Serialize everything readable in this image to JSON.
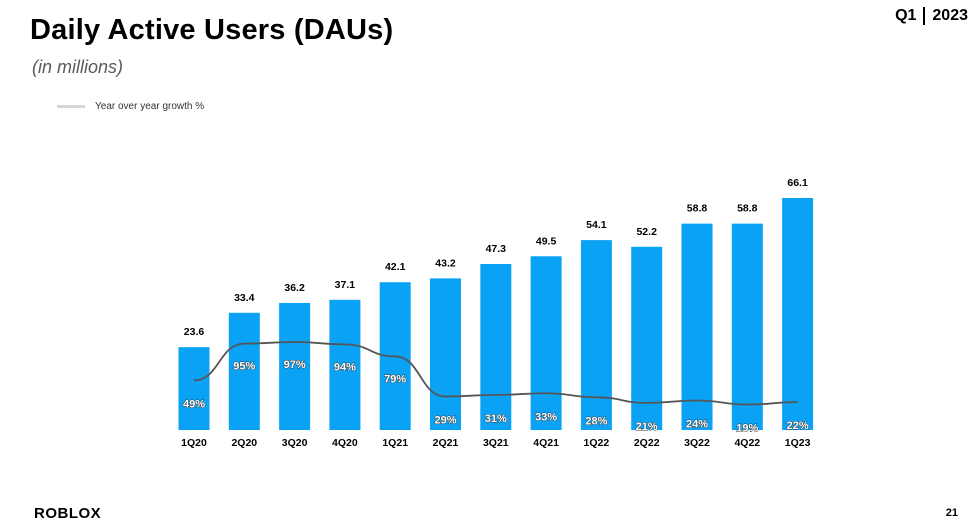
{
  "header": {
    "title": "Daily Active Users (DAUs)",
    "subtitle": "(in millions)",
    "quarter": "Q1",
    "year": "2023"
  },
  "legend": {
    "series_label": "Year over year growth %"
  },
  "footer": {
    "logo_text": "ROBLOX",
    "page_number": "21"
  },
  "colors": {
    "bar": "#0aa2f5",
    "line": "#555555",
    "legend_swatch": "#d6d6d6"
  },
  "chart_data": {
    "type": "bar",
    "title": "Daily Active Users (DAUs)",
    "ylabel": "(in millions)",
    "xlabel": "",
    "categories": [
      "1Q20",
      "2Q20",
      "3Q20",
      "4Q20",
      "1Q21",
      "2Q21",
      "3Q21",
      "4Q21",
      "1Q22",
      "2Q22",
      "3Q22",
      "4Q22",
      "1Q23"
    ],
    "value_labels": [
      "23.6",
      "33.4",
      "36.2",
      "37.1",
      "42.1",
      "43.2",
      "47.3",
      "49.5",
      "54.1",
      "52.2",
      "58.8",
      "58.8",
      "66.1"
    ],
    "values": [
      23.6,
      33.4,
      36.2,
      37.1,
      42.1,
      43.2,
      47.3,
      49.5,
      54.1,
      52.2,
      58.8,
      58.8,
      66.1
    ],
    "growth_labels": [
      "49%",
      "95%",
      "97%",
      "94%",
      "79%",
      "29%",
      "31%",
      "33%",
      "28%",
      "21%",
      "24%",
      "19%",
      "22%"
    ],
    "growth_values": [
      49,
      95,
      97,
      94,
      79,
      29,
      31,
      33,
      28,
      21,
      24,
      19,
      22
    ],
    "ylim": [
      0,
      80
    ],
    "grid": false,
    "legend": "top-left"
  }
}
